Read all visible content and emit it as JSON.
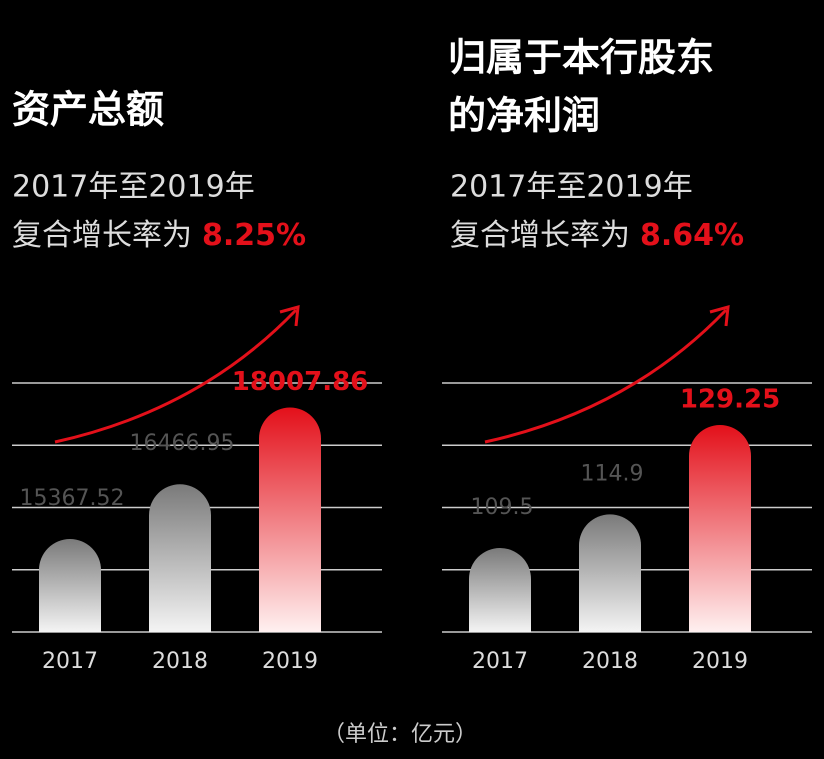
{
  "chart_data": [
    {
      "type": "bar",
      "title": [
        "资产总额"
      ],
      "subtitle": "2017年至2019年",
      "rate_text": "复合增长率为",
      "rate": "8.25%",
      "categories": [
        "2017",
        "2018",
        "2019"
      ],
      "values": [
        15367.52,
        16466.95,
        18007.86
      ],
      "color": "#7a7a7a",
      "highlight_color": "#e3101a",
      "ylim": [
        13500,
        18500
      ]
    },
    {
      "type": "bar",
      "title": [
        "归属于本行股东",
        "的净利润"
      ],
      "subtitle": "2017年至2019年",
      "rate_text": "复合增长率为",
      "rate": "8.64%",
      "categories": [
        "2017",
        "2018",
        "2019"
      ],
      "values": [
        109.5,
        114.9,
        129.25
      ],
      "color": "#7a7a7a",
      "highlight_color": "#e3101a",
      "ylim": [
        96,
        136
      ]
    }
  ],
  "note": "（单位：亿元）"
}
